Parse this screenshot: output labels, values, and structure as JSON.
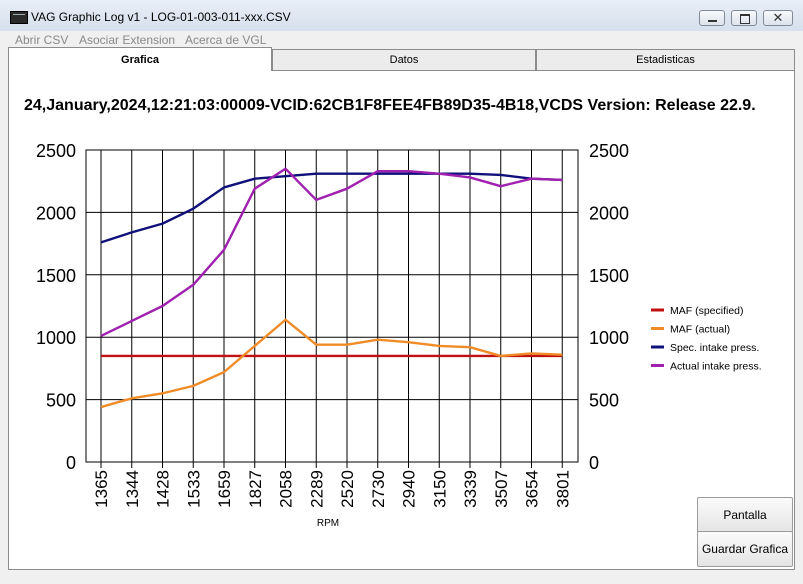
{
  "window": {
    "title": "VAG Graphic Log  v1  -  LOG-01-003-011-xxx.CSV",
    "close_glyph": "✕"
  },
  "menu": {
    "items": [
      "Abrir CSV",
      "Asociar Extension",
      "Acerca de VGL"
    ]
  },
  "tabs": [
    "Grafica",
    "Datos",
    "Estadisticas"
  ],
  "header_line": "24,January,2024,12:21:03:00009-VCID:62CB1F8FEE4FB89D35-4B18,VCDS Version: Release 22.9.",
  "buttons": {
    "fullscreen": "Pantalla Completa",
    "save": "Guardar Grafica"
  },
  "chart_data": {
    "type": "line",
    "categories": [
      "1365",
      "1344",
      "1428",
      "1533",
      "1659",
      "1827",
      "2058",
      "2289",
      "2520",
      "2730",
      "2940",
      "3150",
      "3339",
      "3507",
      "3654",
      "3801"
    ],
    "xlabel": "RPM",
    "ylim": [
      0,
      2500
    ],
    "yticks": [
      0,
      500,
      1000,
      1500,
      2000,
      2500
    ],
    "secondary_axis": true,
    "grid": true,
    "legend_position": "right",
    "series": [
      {
        "name": "MAF (specified)",
        "color": "#c01010",
        "values": [
          850,
          850,
          850,
          850,
          850,
          850,
          850,
          850,
          850,
          850,
          850,
          850,
          850,
          850,
          850,
          850
        ]
      },
      {
        "name": "MAF (actual)",
        "color": "#f08c28",
        "values": [
          440,
          510,
          550,
          610,
          720,
          930,
          1140,
          940,
          940,
          980,
          960,
          930,
          920,
          850,
          870,
          860
        ]
      },
      {
        "name": "Spec. intake press.",
        "color": "#10107a",
        "values": [
          1760,
          1840,
          1910,
          2030,
          2200,
          2270,
          2290,
          2310,
          2310,
          2310,
          2310,
          2310,
          2310,
          2300,
          2270,
          2260
        ]
      },
      {
        "name": "Actual intake press.",
        "color": "#a020b0",
        "values": [
          1010,
          1130,
          1250,
          1420,
          1700,
          2190,
          2350,
          2100,
          2190,
          2330,
          2330,
          2310,
          2280,
          2210,
          2270,
          2260
        ]
      }
    ]
  }
}
